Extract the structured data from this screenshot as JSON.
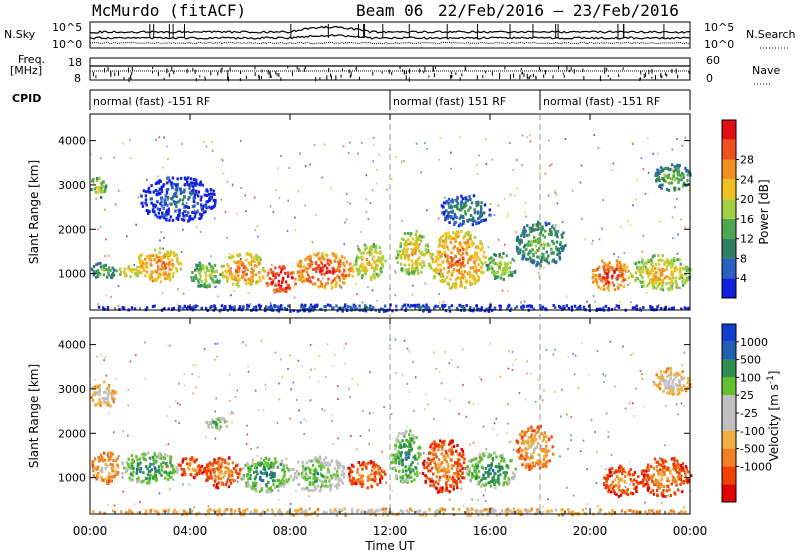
{
  "header": {
    "station": "McMurdo (fitACF)",
    "beam": "Beam 06",
    "date_range": "22/Feb/2016 – 23/Feb/2016"
  },
  "top_panels": {
    "nsky_label": "N.Sky",
    "nsky_ticks": [
      "10^5",
      "10^0"
    ],
    "nsearch_label": "N.Search",
    "nsearch_ticks": [
      "10^5",
      "10^0"
    ],
    "freq_label": "Freq.",
    "freq_unit": "[MHz]",
    "freq_ticks": [
      "18",
      "8"
    ],
    "nave_label": "Nave",
    "nave_ticks": [
      "60",
      "0"
    ],
    "cpid_label": "CPID",
    "cpid_segments": [
      {
        "label": "normal (fast) -151 RF",
        "start_hr": 0,
        "end_hr": 12
      },
      {
        "label": "normal (fast) 151 RF",
        "start_hr": 12,
        "end_hr": 18
      },
      {
        "label": "normal (fast) -151 RF",
        "start_hr": 18,
        "end_hr": 24
      }
    ]
  },
  "x_axis": {
    "title": "Time UT",
    "range_hr": [
      0,
      24
    ],
    "ticks": [
      {
        "hr": 0,
        "label": "00:00"
      },
      {
        "hr": 4,
        "label": "04:00"
      },
      {
        "hr": 8,
        "label": "08:00"
      },
      {
        "hr": 12,
        "label": "12:00"
      },
      {
        "hr": 16,
        "label": "16:00"
      },
      {
        "hr": 20,
        "label": "20:00"
      },
      {
        "hr": 24,
        "label": "00:00"
      }
    ],
    "dashed_markers_hr": [
      12,
      18
    ]
  },
  "chart_data": [
    {
      "type": "heatmap",
      "name": "power",
      "ylabel": "Slant Range [km]",
      "ylim": [
        180,
        4600
      ],
      "yticks": [
        1000,
        2000,
        3000,
        4000
      ],
      "colorbar_label": "Power [dB]",
      "colorbar": {
        "colors": [
          "#1020e0",
          "#2a60c0",
          "#2e8060",
          "#4ca850",
          "#a0d040",
          "#f0c020",
          "#f09020",
          "#f05020",
          "#e01010"
        ],
        "tick_labels": [
          "4",
          "8",
          "12",
          "16",
          "20",
          "24",
          "28"
        ]
      },
      "blobs": [
        {
          "t0": 0.0,
          "t1": 0.6,
          "r0": 2700,
          "r1": 3250,
          "level": 4
        },
        {
          "t0": 0.0,
          "t1": 1.0,
          "r0": 900,
          "r1": 1300,
          "level": 3
        },
        {
          "t0": 1.0,
          "t1": 2.0,
          "r0": 950,
          "r1": 1200,
          "level": 5
        },
        {
          "t0": 1.8,
          "t1": 3.6,
          "r0": 850,
          "r1": 1600,
          "level": 6
        },
        {
          "t0": 4.0,
          "t1": 5.2,
          "r0": 700,
          "r1": 1300,
          "level": 4
        },
        {
          "t0": 5.2,
          "t1": 7.0,
          "r0": 750,
          "r1": 1500,
          "level": 6
        },
        {
          "t0": 7.0,
          "t1": 8.2,
          "r0": 600,
          "r1": 1200,
          "level": 8
        },
        {
          "t0": 8.2,
          "t1": 10.5,
          "r0": 700,
          "r1": 1500,
          "level": 7
        },
        {
          "t0": 10.5,
          "t1": 11.8,
          "r0": 900,
          "r1": 1700,
          "level": 5
        },
        {
          "t0": 12.2,
          "t1": 13.5,
          "r0": 1000,
          "r1": 2000,
          "level": 5
        },
        {
          "t0": 13.5,
          "t1": 15.8,
          "r0": 700,
          "r1": 2000,
          "level": 6
        },
        {
          "t0": 15.8,
          "t1": 17.0,
          "r0": 900,
          "r1": 1500,
          "level": 4
        },
        {
          "t0": 14.0,
          "t1": 16.0,
          "r0": 2100,
          "r1": 2800,
          "level": 2
        },
        {
          "t0": 17.0,
          "t1": 19.0,
          "r0": 1200,
          "r1": 2200,
          "level": 3
        },
        {
          "t0": 20.0,
          "t1": 21.6,
          "r0": 650,
          "r1": 1350,
          "level": 7
        },
        {
          "t0": 21.6,
          "t1": 24.0,
          "r0": 650,
          "r1": 1450,
          "level": 5
        },
        {
          "t0": 22.5,
          "t1": 24.0,
          "r0": 2900,
          "r1": 3500,
          "level": 3
        },
        {
          "t0": 2.0,
          "t1": 5.0,
          "r0": 2200,
          "r1": 3200,
          "level": 1
        },
        {
          "t0": 0.0,
          "t1": 24.0,
          "r0": 180,
          "r1": 330,
          "level": 1
        }
      ]
    },
    {
      "type": "heatmap",
      "name": "velocity",
      "ylabel": "Slant Range [km]",
      "ylim": [
        180,
        4600
      ],
      "yticks": [
        1000,
        2000,
        3000,
        4000
      ],
      "colorbar_label": "Velocity [m s^-1]",
      "colorbar": {
        "colors": [
          "#e00000",
          "#f04000",
          "#f08020",
          "#f0b040",
          "#c0c0c0",
          "#c0c0c0",
          "#60c030",
          "#309050",
          "#2060b0",
          "#1040d0"
        ],
        "tick_labels": [
          "-1000",
          "-500",
          "-100",
          "-25",
          "25",
          "100",
          "500",
          "1000"
        ]
      },
      "blobs": [
        {
          "t0": 0.0,
          "t1": 1.2,
          "r0": 900,
          "r1": 1600,
          "level": 3
        },
        {
          "t0": 1.2,
          "t1": 3.5,
          "r0": 900,
          "r1": 1600,
          "level": 7
        },
        {
          "t0": 3.5,
          "t1": 4.5,
          "r0": 1000,
          "r1": 1500,
          "level": 2
        },
        {
          "t0": 4.5,
          "t1": 6.0,
          "r0": 800,
          "r1": 1500,
          "level": 2
        },
        {
          "t0": 6.0,
          "t1": 8.0,
          "r0": 700,
          "r1": 1500,
          "level": 7
        },
        {
          "t0": 8.0,
          "t1": 10.2,
          "r0": 700,
          "r1": 1500,
          "level": 6
        },
        {
          "t0": 10.2,
          "t1": 11.8,
          "r0": 800,
          "r1": 1400,
          "level": 2
        },
        {
          "t0": 12.0,
          "t1": 13.2,
          "r0": 900,
          "r1": 2100,
          "level": 7
        },
        {
          "t0": 13.2,
          "t1": 15.0,
          "r0": 700,
          "r1": 1900,
          "level": 2
        },
        {
          "t0": 15.0,
          "t1": 17.0,
          "r0": 800,
          "r1": 1600,
          "level": 7
        },
        {
          "t0": 17.0,
          "t1": 18.5,
          "r0": 1200,
          "r1": 2200,
          "level": 3
        },
        {
          "t0": 20.5,
          "t1": 22.0,
          "r0": 600,
          "r1": 1300,
          "level": 2
        },
        {
          "t0": 22.0,
          "t1": 24.0,
          "r0": 600,
          "r1": 1500,
          "level": 2
        },
        {
          "t0": 0.0,
          "t1": 1.0,
          "r0": 2600,
          "r1": 3200,
          "level": 4
        },
        {
          "t0": 4.5,
          "t1": 5.5,
          "r0": 2100,
          "r1": 2400,
          "level": 6
        },
        {
          "t0": 22.5,
          "t1": 24.0,
          "r0": 2900,
          "r1": 3500,
          "level": 4
        },
        {
          "t0": 0.0,
          "t1": 24.0,
          "r0": 180,
          "r1": 330,
          "level": 4
        }
      ]
    }
  ]
}
